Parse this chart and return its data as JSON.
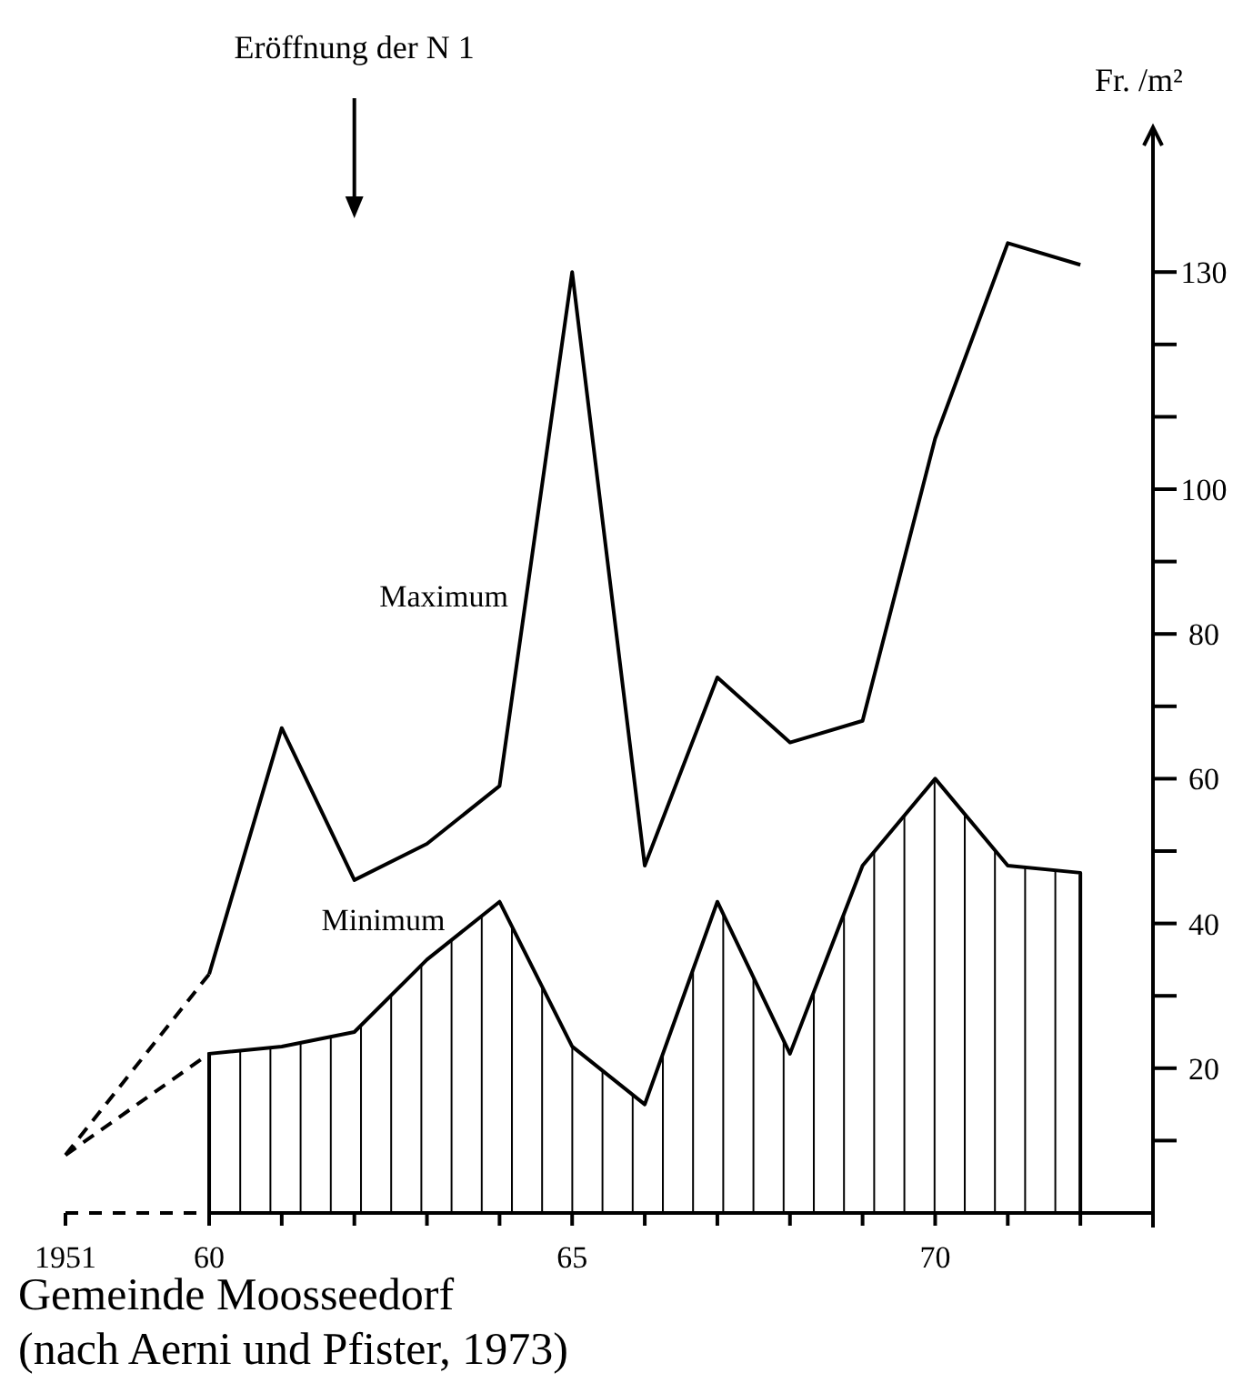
{
  "chart_data": {
    "type": "line",
    "title": "Gemeinde Moosseedorf",
    "annotations": [
      "Eröffnung der N 1",
      "(nach Aerni und Pfister, 1973)"
    ],
    "ylabel": "Fr. /m²",
    "categories": [
      "1951",
      "60",
      null,
      null,
      null,
      null,
      "65",
      null,
      null,
      null,
      null,
      "70",
      null,
      null,
      null
    ],
    "series": [
      {
        "name": "Maximum",
        "color": "#000000",
        "line_style": "solid",
        "values": [
          null,
          33,
          67,
          46,
          51,
          59,
          130,
          48,
          74,
          65,
          68,
          107,
          134,
          131,
          null
        ]
      },
      {
        "name": "Minimum",
        "type": "area",
        "color": "#000000",
        "line_style": "solid",
        "values": [
          null,
          22,
          23,
          25,
          35,
          43,
          23,
          15,
          43,
          22,
          48,
          60,
          48,
          47,
          null
        ]
      },
      {
        "color": "#000000",
        "line_style": "dashed",
        "values": [
          8,
          33,
          null,
          null,
          null,
          null,
          null,
          null,
          null,
          null,
          null,
          null,
          null,
          null,
          null
        ]
      },
      {
        "color": "#000000",
        "line_style": "dashed",
        "values": [
          8,
          22,
          null,
          null,
          null,
          null,
          null,
          null,
          null,
          null,
          null,
          null,
          null,
          null,
          null
        ]
      }
    ],
    "ylim": [
      0,
      150
    ],
    "yticks": [
      {
        "value": 10,
        "label": null
      },
      20,
      {
        "value": 30,
        "label": null
      },
      40,
      {
        "value": 50,
        "label": null
      },
      60,
      {
        "value": 70,
        "label": null
      },
      80,
      {
        "value": 90,
        "label": null
      },
      100,
      {
        "value": 110,
        "label": null
      },
      {
        "value": 120,
        "label": null
      },
      130
    ],
    "grid": false
  }
}
